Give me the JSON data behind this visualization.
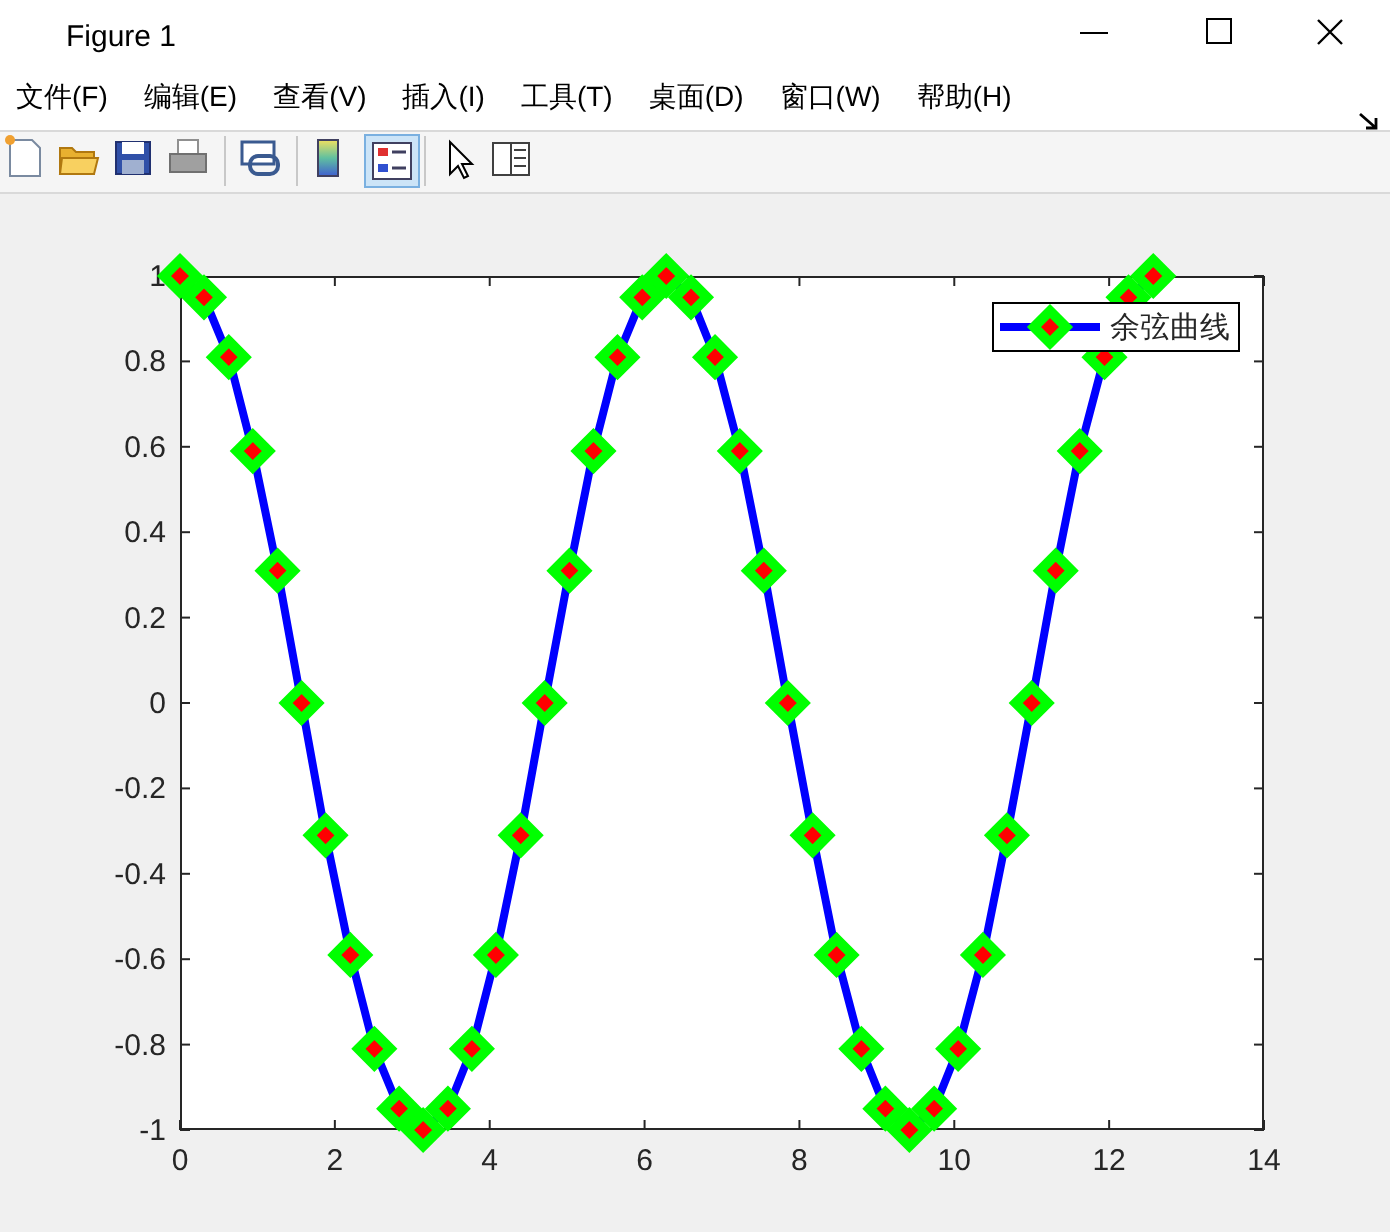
{
  "chart_data": {
    "type": "line",
    "x": [
      0,
      0.31,
      0.63,
      0.94,
      1.26,
      1.57,
      1.88,
      2.2,
      2.51,
      2.83,
      3.14,
      3.46,
      3.77,
      4.08,
      4.4,
      4.71,
      5.03,
      5.34,
      5.65,
      5.97,
      6.28,
      6.6,
      6.91,
      7.23,
      7.54,
      7.85,
      8.17,
      8.48,
      8.8,
      9.11,
      9.42,
      9.74,
      10.05,
      10.37,
      10.68,
      11,
      11.31,
      11.62,
      11.94,
      12.25,
      12.57
    ],
    "series": [
      {
        "name": "余弦曲线",
        "color": "#0000ff",
        "values": [
          1,
          0.95,
          0.81,
          0.59,
          0.31,
          0,
          -0.31,
          -0.59,
          -0.81,
          -0.95,
          -1,
          -0.95,
          -0.81,
          -0.59,
          -0.31,
          0,
          0.31,
          0.59,
          0.81,
          0.95,
          1,
          0.95,
          0.81,
          0.59,
          0.31,
          0,
          -0.31,
          -0.59,
          -0.81,
          -0.95,
          -1,
          -0.95,
          -0.81,
          -0.59,
          -0.31,
          0,
          0.31,
          0.59,
          0.81,
          0.95,
          1
        ]
      }
    ],
    "xlim": [
      0,
      14
    ],
    "xticks": [
      0,
      2,
      4,
      6,
      8,
      10,
      12,
      14
    ],
    "ylim": [
      -1,
      1
    ],
    "yticks": [
      -1,
      -0.8,
      -0.6,
      -0.4,
      -0.2,
      0,
      0.2,
      0.4,
      0.6,
      0.8,
      1
    ],
    "marker": "diamond",
    "line_style": "solid",
    "legend": "top right",
    "grid": false,
    "annotations": [
      "Figure 1",
      "文件(F)",
      "编辑(E)",
      "查看(V)",
      "插入(I)",
      "工具(T)",
      "桌面(D)",
      "窗口(W)",
      "帮助(H)"
    ]
  }
}
